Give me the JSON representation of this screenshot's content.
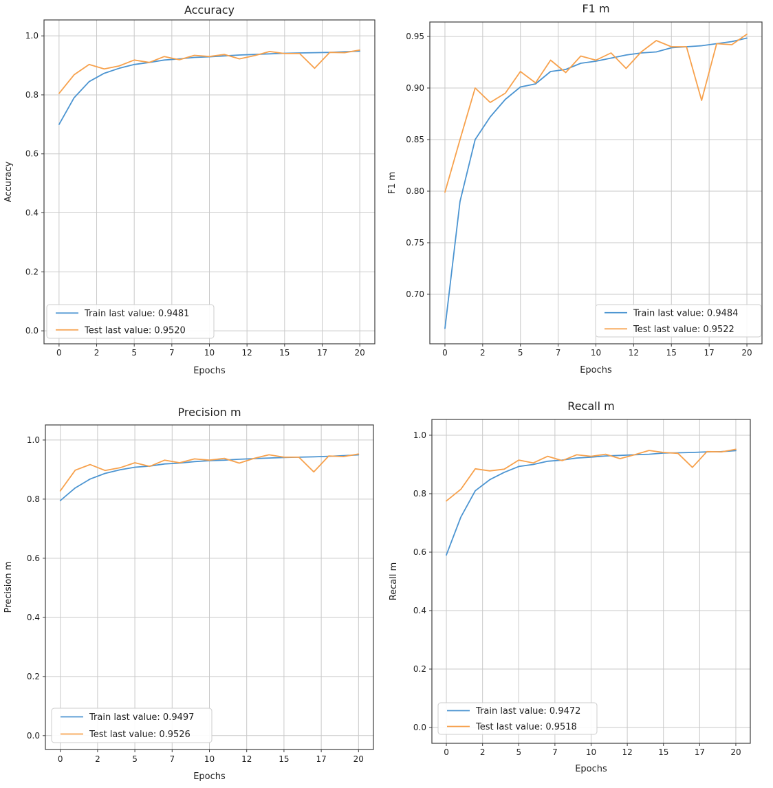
{
  "figure": {
    "background": "#ffffff",
    "grid_color": "#c9c9c9",
    "spine_color": "#3c3c3c",
    "text_color": "#1f1f1f",
    "train_color": "#4b94d1",
    "test_color": "#f7a14c"
  },
  "chart_data": [
    {
      "id": "accuracy",
      "type": "line",
      "title": "Accuracy",
      "xlabel": "Epochs",
      "ylabel": "Accuracy",
      "grid": true,
      "legend_loc": "lower-left",
      "xlim": [
        -1,
        21
      ],
      "ylim": [
        -0.044,
        1.054
      ],
      "x": [
        0,
        1,
        2,
        3,
        4,
        5,
        6,
        7,
        8,
        9,
        10,
        11,
        12,
        13,
        14,
        15,
        16,
        17,
        18,
        19,
        20
      ],
      "xticks": {
        "values": [
          0,
          2.5,
          5,
          7.5,
          10,
          12.5,
          15,
          17.5,
          20
        ],
        "labels": [
          "0",
          "2",
          "5",
          "7",
          "10",
          "12",
          "15",
          "17",
          "20"
        ]
      },
      "yticks": {
        "values": [
          0.0,
          0.2,
          0.4,
          0.6,
          0.8,
          1.0
        ],
        "labels": [
          "0.0",
          "0.2",
          "0.4",
          "0.6",
          "0.8",
          "1.0"
        ]
      },
      "series": [
        {
          "name": "Train",
          "legend_label": "Train last value: 0.9481",
          "last_value": 0.9481,
          "color": "#4b94d1",
          "values": [
            0.7,
            0.79,
            0.845,
            0.873,
            0.89,
            0.903,
            0.91,
            0.918,
            0.922,
            0.927,
            0.929,
            0.932,
            0.935,
            0.937,
            0.939,
            0.941,
            0.942,
            0.943,
            0.944,
            0.946,
            0.9481
          ]
        },
        {
          "name": "Test",
          "legend_label": "Test last value: 0.9520",
          "last_value": 0.952,
          "color": "#f7a14c",
          "values": [
            0.805,
            0.868,
            0.903,
            0.888,
            0.898,
            0.918,
            0.91,
            0.93,
            0.919,
            0.934,
            0.93,
            0.937,
            0.922,
            0.933,
            0.947,
            0.94,
            0.94,
            0.89,
            0.944,
            0.943,
            0.952
          ]
        }
      ]
    },
    {
      "id": "f1",
      "type": "line",
      "title": "F1 m",
      "xlabel": "Epochs",
      "ylabel": "F1 m",
      "grid": true,
      "legend_loc": "lower-right",
      "xlim": [
        -1,
        21
      ],
      "ylim": [
        0.652,
        0.964
      ],
      "x": [
        0,
        1,
        2,
        3,
        4,
        5,
        6,
        7,
        8,
        9,
        10,
        11,
        12,
        13,
        14,
        15,
        16,
        17,
        18,
        19,
        20
      ],
      "xticks": {
        "values": [
          0,
          2.5,
          5,
          7.5,
          10,
          12.5,
          15,
          17.5,
          20
        ],
        "labels": [
          "0",
          "2",
          "5",
          "7",
          "10",
          "12",
          "15",
          "17",
          "20"
        ]
      },
      "yticks": {
        "values": [
          0.7,
          0.75,
          0.8,
          0.85,
          0.9,
          0.95
        ],
        "labels": [
          "0.70",
          "0.75",
          "0.80",
          "0.85",
          "0.90",
          "0.95"
        ]
      },
      "series": [
        {
          "name": "Train",
          "legend_label": "Train last value: 0.9484",
          "last_value": 0.9484,
          "color": "#4b94d1",
          "values": [
            0.667,
            0.79,
            0.85,
            0.872,
            0.889,
            0.901,
            0.904,
            0.916,
            0.918,
            0.924,
            0.926,
            0.929,
            0.932,
            0.934,
            0.935,
            0.939,
            0.94,
            0.941,
            0.943,
            0.945,
            0.9484
          ]
        },
        {
          "name": "Test",
          "legend_label": "Test last value: 0.9522",
          "last_value": 0.9522,
          "color": "#f7a14c",
          "values": [
            0.799,
            0.85,
            0.9,
            0.886,
            0.895,
            0.916,
            0.905,
            0.927,
            0.915,
            0.931,
            0.927,
            0.934,
            0.919,
            0.935,
            0.946,
            0.94,
            0.94,
            0.888,
            0.943,
            0.942,
            0.9522
          ]
        }
      ]
    },
    {
      "id": "precision",
      "type": "line",
      "title": "Precision m",
      "xlabel": "Epochs",
      "ylabel": "Precision m",
      "grid": true,
      "legend_loc": "lower-left",
      "xlim": [
        -1,
        21
      ],
      "ylim": [
        -0.047,
        1.051
      ],
      "x": [
        0,
        1,
        2,
        3,
        4,
        5,
        6,
        7,
        8,
        9,
        10,
        11,
        12,
        13,
        14,
        15,
        16,
        17,
        18,
        19,
        20
      ],
      "xticks": {
        "values": [
          0,
          2.5,
          5,
          7.5,
          10,
          12.5,
          15,
          17.5,
          20
        ],
        "labels": [
          "0",
          "2",
          "5",
          "7",
          "10",
          "12",
          "15",
          "17",
          "20"
        ]
      },
      "yticks": {
        "values": [
          0.0,
          0.2,
          0.4,
          0.6,
          0.8,
          1.0
        ],
        "labels": [
          "0.0",
          "0.2",
          "0.4",
          "0.6",
          "0.8",
          "1.0"
        ]
      },
      "series": [
        {
          "name": "Train",
          "legend_label": "Train last value: 0.9497",
          "last_value": 0.9497,
          "color": "#4b94d1",
          "values": [
            0.795,
            0.838,
            0.868,
            0.887,
            0.899,
            0.908,
            0.912,
            0.919,
            0.922,
            0.927,
            0.93,
            0.932,
            0.935,
            0.937,
            0.939,
            0.941,
            0.942,
            0.943,
            0.945,
            0.947,
            0.9497
          ]
        },
        {
          "name": "Test",
          "legend_label": "Test last value: 0.9526",
          "last_value": 0.9526,
          "color": "#f7a14c",
          "values": [
            0.828,
            0.898,
            0.917,
            0.897,
            0.906,
            0.923,
            0.911,
            0.932,
            0.923,
            0.936,
            0.932,
            0.938,
            0.922,
            0.938,
            0.95,
            0.942,
            0.942,
            0.892,
            0.946,
            0.944,
            0.9526
          ]
        }
      ]
    },
    {
      "id": "recall",
      "type": "line",
      "title": "Recall m",
      "xlabel": "Epochs",
      "ylabel": "Recall m",
      "grid": true,
      "legend_loc": "lower-left",
      "xlim": [
        -1,
        21
      ],
      "ylim": [
        -0.054,
        1.054
      ],
      "x": [
        0,
        1,
        2,
        3,
        4,
        5,
        6,
        7,
        8,
        9,
        10,
        11,
        12,
        13,
        14,
        15,
        16,
        17,
        18,
        19,
        20
      ],
      "xticks": {
        "values": [
          0,
          2.5,
          5,
          7.5,
          10,
          12.5,
          15,
          17.5,
          20
        ],
        "labels": [
          "0",
          "2",
          "5",
          "7",
          "10",
          "12",
          "15",
          "17",
          "20"
        ]
      },
      "yticks": {
        "values": [
          0.0,
          0.2,
          0.4,
          0.6,
          0.8,
          1.0
        ],
        "labels": [
          "0.0",
          "0.2",
          "0.4",
          "0.6",
          "0.8",
          "1.0"
        ]
      },
      "series": [
        {
          "name": "Train",
          "legend_label": "Train last value: 0.9472",
          "last_value": 0.9472,
          "color": "#4b94d1",
          "values": [
            0.59,
            0.72,
            0.81,
            0.848,
            0.873,
            0.893,
            0.9,
            0.911,
            0.915,
            0.922,
            0.925,
            0.929,
            0.931,
            0.933,
            0.935,
            0.939,
            0.94,
            0.941,
            0.943,
            0.944,
            0.9472
          ]
        },
        {
          "name": "Test",
          "legend_label": "Test last value: 0.9518",
          "last_value": 0.9518,
          "color": "#f7a14c",
          "values": [
            0.775,
            0.815,
            0.885,
            0.878,
            0.884,
            0.915,
            0.905,
            0.928,
            0.913,
            0.933,
            0.928,
            0.935,
            0.92,
            0.933,
            0.948,
            0.941,
            0.938,
            0.89,
            0.944,
            0.943,
            0.9518
          ]
        }
      ]
    }
  ]
}
